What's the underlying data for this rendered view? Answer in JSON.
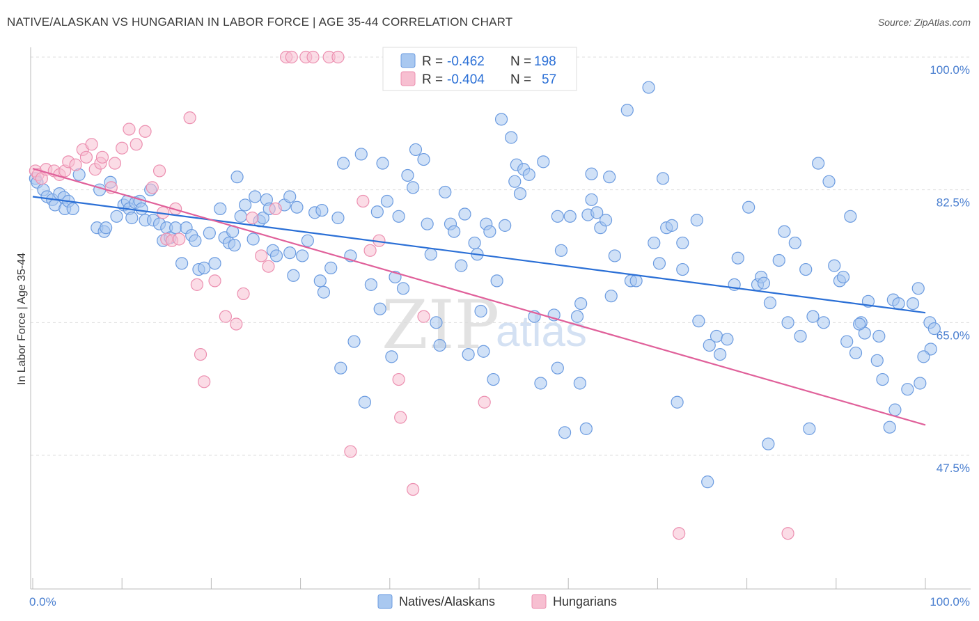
{
  "title": "NATIVE/ALASKAN VS HUNGARIAN IN LABOR FORCE | AGE 35-44 CORRELATION CHART",
  "source": "Source: ZipAtlas.com",
  "watermark": {
    "zip": "ZIP",
    "atlas": "atlas"
  },
  "colors": {
    "blue_fill": "#a9c8f0",
    "blue_stroke": "#6b9be0",
    "blue_line": "#2a6fd6",
    "pink_fill": "#f7bfd1",
    "pink_stroke": "#ec8fb0",
    "pink_line": "#e0609a",
    "value_blue": "#2a6fd6",
    "grid": "#dddddd",
    "axis": "#bbbbbb"
  },
  "legend": {
    "rows": [
      {
        "r_label": "R =",
        "r_value": "-0.462",
        "n_label": "N =",
        "n_value": "198"
      },
      {
        "r_label": "R =",
        "r_value": "-0.404",
        "n_label": "N =",
        "n_value": "57"
      }
    ]
  },
  "chart_data": {
    "type": "scatter",
    "xlabel": "",
    "ylabel": "In Labor Force | Age 35-44",
    "xlim": [
      0,
      100
    ],
    "ylim": [
      32,
      102
    ],
    "x_ticks": [
      0,
      100
    ],
    "x_tick_labels": [
      "0.0%",
      "100.0%"
    ],
    "y_ticks": [
      47.5,
      65.0,
      82.5,
      100.0
    ],
    "y_tick_labels": [
      "47.5%",
      "65.0%",
      "82.5%",
      "100.0%"
    ],
    "grid": true,
    "legend_position": "top-center",
    "series": [
      {
        "name": "Natives/Alaskans",
        "trend": {
          "x": [
            0,
            100
          ],
          "y": [
            81.6,
            66.3
          ]
        },
        "points": [
          [
            0.3,
            84.0
          ],
          [
            0.5,
            83.5
          ],
          [
            1.2,
            82.5
          ],
          [
            1.6,
            81.6
          ],
          [
            2.2,
            81.2
          ],
          [
            2.5,
            80.5
          ],
          [
            3.0,
            82.0
          ],
          [
            3.5,
            81.5
          ],
          [
            3.6,
            80.0
          ],
          [
            4.0,
            81.0
          ],
          [
            4.5,
            80.0
          ],
          [
            5.2,
            84.5
          ],
          [
            7.2,
            77.5
          ],
          [
            7.5,
            82.5
          ],
          [
            8.0,
            77.0
          ],
          [
            8.2,
            77.5
          ],
          [
            8.7,
            83.5
          ],
          [
            9.4,
            79.0
          ],
          [
            10.2,
            80.5
          ],
          [
            10.6,
            81.0
          ],
          [
            10.8,
            80.0
          ],
          [
            11.1,
            78.8
          ],
          [
            11.5,
            80.8
          ],
          [
            12.0,
            81.0
          ],
          [
            12.2,
            80.0
          ],
          [
            12.6,
            78.5
          ],
          [
            13.2,
            82.5
          ],
          [
            13.5,
            78.5
          ],
          [
            14.2,
            78.0
          ],
          [
            14.6,
            75.8
          ],
          [
            15.0,
            77.5
          ],
          [
            15.4,
            76.2
          ],
          [
            16.0,
            77.5
          ],
          [
            16.7,
            72.8
          ],
          [
            17.2,
            77.5
          ],
          [
            17.8,
            76.5
          ],
          [
            18.2,
            75.8
          ],
          [
            18.6,
            72.0
          ],
          [
            19.2,
            72.2
          ],
          [
            19.8,
            76.8
          ],
          [
            20.4,
            72.8
          ],
          [
            21.0,
            80.0
          ],
          [
            21.5,
            76.2
          ],
          [
            22.0,
            75.5
          ],
          [
            22.4,
            77.0
          ],
          [
            22.6,
            75.2
          ],
          [
            22.9,
            84.2
          ],
          [
            23.3,
            79.0
          ],
          [
            23.8,
            80.5
          ],
          [
            24.7,
            76.0
          ],
          [
            24.9,
            81.6
          ],
          [
            25.4,
            78.4
          ],
          [
            25.8,
            78.8
          ],
          [
            26.2,
            81.2
          ],
          [
            26.5,
            80.0
          ],
          [
            26.9,
            74.5
          ],
          [
            27.3,
            73.8
          ],
          [
            28.2,
            80.5
          ],
          [
            28.8,
            81.6
          ],
          [
            28.8,
            74.2
          ],
          [
            29.2,
            71.2
          ],
          [
            29.6,
            80.2
          ],
          [
            30.2,
            73.8
          ],
          [
            30.8,
            75.8
          ],
          [
            31.6,
            79.5
          ],
          [
            32.2,
            70.5
          ],
          [
            32.4,
            79.8
          ],
          [
            32.6,
            69.0
          ],
          [
            33.4,
            72.2
          ],
          [
            34.2,
            78.8
          ],
          [
            34.5,
            59.0
          ],
          [
            34.8,
            86.0
          ],
          [
            35.6,
            73.8
          ],
          [
            36.0,
            62.5
          ],
          [
            36.8,
            87.2
          ],
          [
            37.2,
            54.5
          ],
          [
            37.9,
            70.0
          ],
          [
            38.6,
            79.6
          ],
          [
            38.9,
            66.8
          ],
          [
            39.2,
            86.0
          ],
          [
            39.7,
            81.0
          ],
          [
            40.2,
            60.5
          ],
          [
            40.6,
            71.0
          ],
          [
            41.0,
            79.0
          ],
          [
            41.5,
            69.5
          ],
          [
            42.0,
            84.4
          ],
          [
            42.6,
            82.8
          ],
          [
            42.9,
            87.8
          ],
          [
            43.8,
            86.5
          ],
          [
            44.2,
            78.0
          ],
          [
            44.6,
            74.0
          ],
          [
            45.2,
            65.0
          ],
          [
            45.6,
            62.0
          ],
          [
            46.2,
            82.2
          ],
          [
            46.8,
            78.0
          ],
          [
            47.2,
            77.0
          ],
          [
            48.0,
            72.5
          ],
          [
            48.4,
            79.3
          ],
          [
            48.8,
            60.8
          ],
          [
            49.5,
            75.5
          ],
          [
            49.8,
            74.0
          ],
          [
            50.2,
            66.5
          ],
          [
            50.5,
            61.2
          ],
          [
            50.8,
            78.0
          ],
          [
            51.2,
            77.0
          ],
          [
            51.6,
            57.5
          ],
          [
            52.0,
            70.5
          ],
          [
            52.5,
            91.8
          ],
          [
            52.9,
            77.8
          ],
          [
            53.6,
            89.4
          ],
          [
            54.0,
            83.6
          ],
          [
            54.2,
            85.8
          ],
          [
            54.6,
            82.0
          ],
          [
            55.0,
            85.2
          ],
          [
            55.6,
            84.5
          ],
          [
            56.2,
            65.8
          ],
          [
            56.9,
            57.0
          ],
          [
            57.2,
            86.2
          ],
          [
            58.4,
            66.0
          ],
          [
            58.8,
            79.0
          ],
          [
            59.2,
            74.5
          ],
          [
            59.6,
            50.5
          ],
          [
            60.2,
            79.0
          ],
          [
            61.0,
            65.8
          ],
          [
            61.4,
            67.5
          ],
          [
            62.2,
            79.2
          ],
          [
            62.6,
            81.2
          ],
          [
            62.6,
            84.6
          ],
          [
            63.2,
            79.5
          ],
          [
            63.6,
            77.5
          ],
          [
            64.2,
            78.5
          ],
          [
            64.6,
            84.2
          ],
          [
            64.8,
            68.5
          ],
          [
            65.2,
            73.8
          ],
          [
            66.6,
            93.0
          ],
          [
            67.0,
            70.5
          ],
          [
            67.6,
            70.5
          ],
          [
            69.0,
            96.0
          ],
          [
            69.6,
            75.5
          ],
          [
            70.2,
            72.8
          ],
          [
            70.6,
            84.0
          ],
          [
            71.0,
            77.5
          ],
          [
            71.6,
            77.8
          ],
          [
            72.2,
            54.5
          ],
          [
            72.8,
            75.5
          ],
          [
            72.8,
            72.0
          ],
          [
            74.4,
            78.5
          ],
          [
            74.6,
            65.2
          ],
          [
            75.8,
            62.0
          ],
          [
            76.6,
            63.2
          ],
          [
            77.0,
            60.8
          ],
          [
            77.8,
            62.8
          ],
          [
            78.6,
            70.0
          ],
          [
            79.0,
            73.5
          ],
          [
            80.2,
            80.2
          ],
          [
            81.2,
            70.0
          ],
          [
            81.6,
            71.0
          ],
          [
            81.9,
            70.2
          ],
          [
            82.4,
            49.0
          ],
          [
            82.6,
            67.6
          ],
          [
            83.6,
            73.2
          ],
          [
            84.2,
            77.0
          ],
          [
            84.6,
            65.0
          ],
          [
            85.4,
            75.5
          ],
          [
            86.0,
            63.2
          ],
          [
            86.6,
            72.0
          ],
          [
            87.4,
            65.8
          ],
          [
            88.0,
            86.0
          ],
          [
            88.6,
            65.0
          ],
          [
            89.2,
            83.6
          ],
          [
            89.8,
            72.5
          ],
          [
            90.4,
            70.5
          ],
          [
            90.8,
            71.0
          ],
          [
            91.2,
            62.5
          ],
          [
            91.6,
            79.0
          ],
          [
            92.2,
            61.0
          ],
          [
            92.8,
            65.0
          ],
          [
            93.2,
            63.6
          ],
          [
            93.6,
            67.8
          ],
          [
            94.6,
            60.0
          ],
          [
            95.2,
            57.5
          ],
          [
            96.4,
            68.0
          ],
          [
            97.0,
            67.5
          ],
          [
            98.6,
            67.5
          ],
          [
            99.2,
            69.5
          ],
          [
            100.5,
            65.0
          ],
          [
            101.0,
            64.2
          ],
          [
            100.6,
            61.5
          ],
          [
            99.8,
            60.5
          ],
          [
            99.4,
            57.0
          ],
          [
            98.0,
            56.2
          ],
          [
            96.6,
            53.5
          ],
          [
            96.0,
            51.2
          ],
          [
            94.8,
            63.2
          ],
          [
            92.6,
            64.8
          ],
          [
            87.0,
            51.0
          ],
          [
            75.6,
            44.0
          ],
          [
            62.0,
            51.0
          ],
          [
            61.3,
            57.0
          ],
          [
            58.8,
            59.0
          ]
        ]
      },
      {
        "name": "Hungarians",
        "trend": {
          "x": [
            0,
            100
          ],
          "y": [
            85.3,
            51.5
          ]
        },
        "points": [
          [
            0.3,
            85.0
          ],
          [
            0.6,
            84.5
          ],
          [
            1.0,
            84.0
          ],
          [
            1.5,
            85.2
          ],
          [
            2.4,
            85.0
          ],
          [
            3.0,
            84.5
          ],
          [
            3.6,
            85.0
          ],
          [
            4.0,
            86.2
          ],
          [
            4.8,
            85.8
          ],
          [
            5.6,
            87.8
          ],
          [
            6.0,
            86.8
          ],
          [
            6.6,
            88.5
          ],
          [
            7.0,
            85.2
          ],
          [
            7.6,
            86.0
          ],
          [
            7.8,
            86.8
          ],
          [
            8.8,
            82.8
          ],
          [
            9.2,
            86.0
          ],
          [
            10.0,
            88.0
          ],
          [
            10.8,
            90.5
          ],
          [
            11.6,
            88.5
          ],
          [
            12.6,
            90.2
          ],
          [
            13.4,
            82.8
          ],
          [
            14.2,
            85.0
          ],
          [
            14.6,
            79.5
          ],
          [
            15.0,
            76.0
          ],
          [
            15.6,
            75.8
          ],
          [
            16.0,
            80.0
          ],
          [
            16.4,
            76.0
          ],
          [
            17.6,
            92.0
          ],
          [
            18.4,
            70.0
          ],
          [
            18.8,
            60.8
          ],
          [
            19.2,
            57.2
          ],
          [
            20.4,
            70.5
          ],
          [
            21.6,
            65.8
          ],
          [
            22.8,
            64.8
          ],
          [
            23.6,
            68.8
          ],
          [
            24.6,
            78.8
          ],
          [
            25.6,
            73.8
          ],
          [
            26.4,
            72.4
          ],
          [
            27.2,
            80.0
          ],
          [
            28.4,
            100.0
          ],
          [
            29.0,
            100.0
          ],
          [
            30.6,
            100.0
          ],
          [
            31.4,
            100.0
          ],
          [
            33.2,
            100.0
          ],
          [
            34.2,
            100.0
          ],
          [
            35.6,
            48.0
          ],
          [
            37.0,
            81.0
          ],
          [
            37.8,
            74.5
          ],
          [
            38.8,
            75.8
          ],
          [
            41.0,
            57.5
          ],
          [
            41.2,
            52.5
          ],
          [
            42.6,
            43.0
          ],
          [
            43.8,
            65.8
          ],
          [
            50.6,
            54.5
          ],
          [
            72.4,
            37.2
          ],
          [
            84.6,
            37.2
          ]
        ]
      }
    ]
  },
  "bottom_legend": [
    {
      "label": "Natives/Alaskans"
    },
    {
      "label": "Hungarians"
    }
  ]
}
